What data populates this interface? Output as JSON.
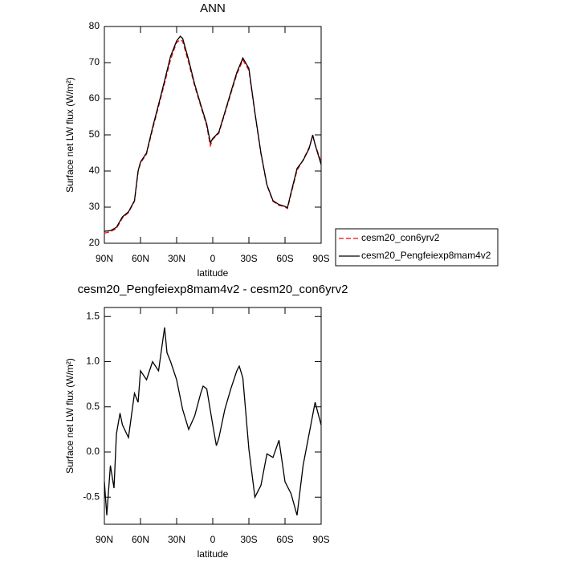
{
  "chart_data": [
    {
      "type": "line",
      "title": "ANN",
      "x_label": "latitude",
      "y_label": "Surface net LW flux (W/m²)",
      "x": [
        90,
        85,
        80,
        75,
        70,
        65,
        62,
        60,
        55,
        50,
        45,
        40,
        35,
        30,
        27,
        25,
        20,
        15,
        10,
        5,
        2,
        0,
        -5,
        -10,
        -15,
        -20,
        -25,
        -30,
        -35,
        -40,
        -45,
        -50,
        -55,
        -60,
        -62,
        -65,
        -70,
        -75,
        -80,
        -83,
        -85,
        -90
      ],
      "series": [
        {
          "name": "cesm20_con6yrv2",
          "color": "#ff0000",
          "dashed": true,
          "values": [
            22.8,
            23.2,
            24.1,
            27,
            28.5,
            31.6,
            39.8,
            42.2,
            44.7,
            51.5,
            57.9,
            64.3,
            70.9,
            75.6,
            76.3,
            75.9,
            70,
            63.5,
            58,
            52.5,
            47,
            48.8,
            50.4,
            55.9,
            61.4,
            66.8,
            70.7,
            67.9,
            56,
            44.8,
            36,
            31.6,
            30.5,
            30.1,
            29.6,
            33.6,
            40.2,
            43.1,
            46.5,
            49.6,
            47.4,
            42.4
          ]
        },
        {
          "name": "cesm20_Pengfeiexp8mam4v2",
          "color": "#000000",
          "dashed": false,
          "values": [
            23.3,
            23.5,
            24.4,
            27.3,
            28.7,
            31.8,
            40,
            42.5,
            45,
            52,
            58.4,
            65,
            71.8,
            76,
            77.3,
            76.7,
            70.7,
            64,
            58.4,
            53,
            47.8,
            49,
            50.7,
            56.2,
            61.8,
            67.3,
            71.3,
            68.4,
            56.2,
            45,
            36.2,
            31.8,
            30.7,
            30.2,
            29.8,
            34,
            40.7,
            42.9,
            46.2,
            50,
            47.3,
            41.8
          ]
        }
      ],
      "xlim": [
        90,
        -90
      ],
      "xticks": [
        {
          "value": 90,
          "label": "90N"
        },
        {
          "value": 60,
          "label": "60N"
        },
        {
          "value": 30,
          "label": "30N"
        },
        0,
        {
          "value": -30,
          "label": "30S"
        },
        {
          "value": -60,
          "label": "60S"
        },
        {
          "value": -90,
          "label": "90S"
        }
      ],
      "ylim": [
        20,
        80
      ],
      "yticks": [
        20,
        30,
        40,
        50,
        60,
        70,
        80
      ],
      "legend": "right"
    },
    {
      "type": "line",
      "title": "cesm20_Pengfeiexp8mam4v2 - cesm20_con6yrv2",
      "x_label": "latitude",
      "y_label": "Surface net LW flux (W/m²)",
      "x": [
        90,
        88,
        85,
        82,
        80,
        77,
        75,
        70,
        65,
        62,
        60,
        55,
        50,
        45,
        40,
        38,
        35,
        30,
        25,
        20,
        15,
        10,
        8,
        5,
        0,
        -3,
        -5,
        -10,
        -15,
        -20,
        -22,
        -25,
        -30,
        -35,
        -40,
        -45,
        -50,
        -55,
        -60,
        -65,
        -70,
        -75,
        -80,
        -85,
        -90
      ],
      "values": [
        -0.33,
        -0.7,
        -0.15,
        -0.4,
        0.2,
        0.43,
        0.3,
        0.16,
        0.65,
        0.55,
        0.9,
        0.8,
        1.0,
        0.9,
        1.38,
        1.1,
        1.0,
        0.8,
        0.47,
        0.25,
        0.4,
        0.65,
        0.73,
        0.7,
        0.3,
        0.07,
        0.15,
        0.47,
        0.7,
        0.9,
        0.95,
        0.82,
        0.03,
        -0.5,
        -0.37,
        -0.02,
        -0.06,
        0.13,
        -0.33,
        -0.46,
        -0.7,
        -0.15,
        0.2,
        0.55,
        0.3
      ],
      "color": "#000000",
      "xlim": [
        90,
        -90
      ],
      "xticks": [
        {
          "value": 90,
          "label": "90N"
        },
        {
          "value": 60,
          "label": "60N"
        },
        {
          "value": 30,
          "label": "30N"
        },
        0,
        {
          "value": -30,
          "label": "30S"
        },
        {
          "value": -60,
          "label": "60S"
        },
        {
          "value": -90,
          "label": "90S"
        }
      ],
      "ylim": [
        -0.8,
        1.6
      ],
      "yticks": [
        -0.5,
        {
          "value": 0,
          "label": "0.0"
        },
        0.5,
        {
          "value": 1,
          "label": "1.0"
        },
        1.5
      ]
    }
  ]
}
